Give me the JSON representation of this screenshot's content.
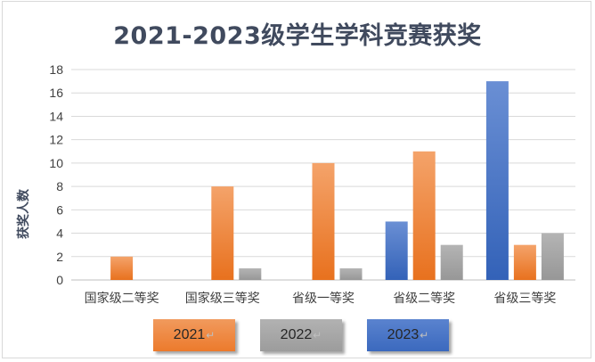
{
  "chart_data": {
    "type": "bar",
    "title": "2021-2023级学生学科竞赛获奖",
    "xlabel": "",
    "ylabel": "获奖人数",
    "categories": [
      "国家级二等奖",
      "国家级三等奖",
      "省级一等奖",
      "省级二等奖",
      "省级三等奖"
    ],
    "series": [
      {
        "name": "2023",
        "values": [
          0,
          0,
          0,
          5,
          17
        ]
      },
      {
        "name": "2021",
        "values": [
          2,
          8,
          10,
          11,
          3
        ]
      },
      {
        "name": "2022",
        "values": [
          0,
          1,
          1,
          3,
          4
        ]
      }
    ],
    "ylim": [
      0,
      18
    ],
    "yticks": [
      0,
      2,
      4,
      6,
      8,
      10,
      12,
      14,
      16,
      18
    ],
    "grid": true,
    "legend": "bottom",
    "legend_entries": [
      "2021",
      "2022",
      "2023"
    ],
    "legend_mark": "↵",
    "colors": {
      "2021": "#ed7d31",
      "2022": "#a5a5a5",
      "2023": "#4472c4"
    }
  }
}
